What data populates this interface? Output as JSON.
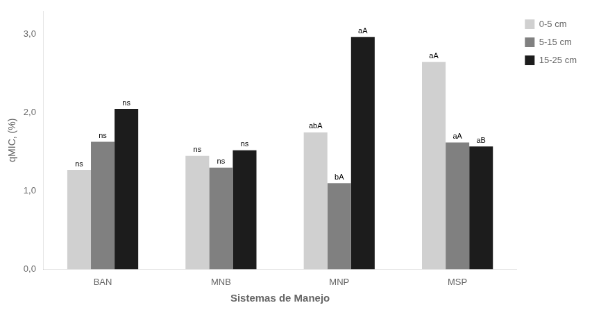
{
  "chart_data": {
    "type": "bar",
    "categories": [
      "BAN",
      "MNB",
      "MNP",
      "MSP"
    ],
    "series": [
      {
        "name": "0-5 cm",
        "color": "#d0d0d0",
        "values": [
          1.27,
          1.45,
          1.75,
          2.65
        ],
        "annotations": [
          "ns",
          "ns",
          "abA",
          "aA"
        ]
      },
      {
        "name": "5-15 cm",
        "color": "#808080",
        "values": [
          1.63,
          1.3,
          1.1,
          1.62
        ],
        "annotations": [
          "ns",
          "ns",
          "bA",
          "aA"
        ]
      },
      {
        "name": "15-25 cm",
        "color": "#1c1c1c",
        "values": [
          2.05,
          1.52,
          2.97,
          1.57
        ],
        "annotations": [
          "ns",
          "ns",
          "aA",
          "aB"
        ]
      }
    ],
    "ylabel": "qMIC, (%)",
    "xlabel": "Sistemas de Manejo",
    "ylim": [
      0.0,
      3.3
    ],
    "yticks": [
      {
        "value": 0.0,
        "label": "0,0"
      },
      {
        "value": 1.0,
        "label": "1,0"
      },
      {
        "value": 2.0,
        "label": "2,0"
      },
      {
        "value": 3.0,
        "label": "3,0"
      }
    ],
    "grid": false,
    "legend": "right"
  }
}
